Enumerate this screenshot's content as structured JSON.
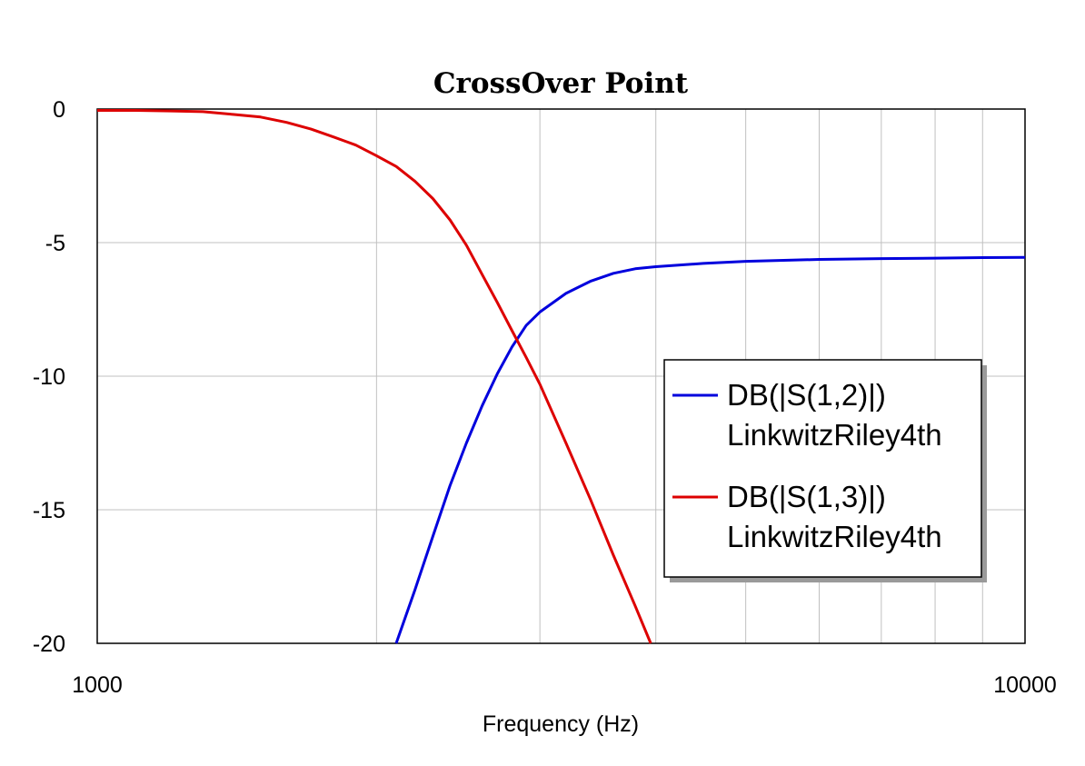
{
  "chart_data": {
    "type": "line",
    "title": "CrossOver Point",
    "xlabel": "Frequency (Hz)",
    "ylabel": "",
    "xscale": "log",
    "xlim": [
      1000,
      10000
    ],
    "ylim": [
      -20,
      0
    ],
    "x_ticks": [
      "1000",
      "10000"
    ],
    "y_ticks": [
      "0",
      "-5",
      "-10",
      "-15",
      "-20"
    ],
    "grid": true,
    "legend_position": "right",
    "series": [
      {
        "name_lines": [
          "DB(|S(1,2)|)",
          "LinkwitzRiley4th"
        ],
        "color": "#0000dd",
        "points": [
          [
            2100,
            -20.0
          ],
          [
            2200,
            -18.0
          ],
          [
            2300,
            -16.0
          ],
          [
            2400,
            -14.1
          ],
          [
            2500,
            -12.5
          ],
          [
            2600,
            -11.1
          ],
          [
            2700,
            -9.9
          ],
          [
            2800,
            -8.9
          ],
          [
            2900,
            -8.1
          ],
          [
            3000,
            -7.6
          ],
          [
            3200,
            -6.9
          ],
          [
            3400,
            -6.45
          ],
          [
            3600,
            -6.15
          ],
          [
            3800,
            -5.98
          ],
          [
            4000,
            -5.9
          ],
          [
            4500,
            -5.78
          ],
          [
            5000,
            -5.7
          ],
          [
            6000,
            -5.63
          ],
          [
            7000,
            -5.6
          ],
          [
            8000,
            -5.58
          ],
          [
            9000,
            -5.56
          ],
          [
            10000,
            -5.55
          ]
        ]
      },
      {
        "name_lines": [
          "DB(|S(1,3)|)",
          "LinkwitzRiley4th"
        ],
        "color": "#dd0000",
        "points": [
          [
            1000,
            -0.05
          ],
          [
            1100,
            -0.05
          ],
          [
            1200,
            -0.07
          ],
          [
            1300,
            -0.1
          ],
          [
            1400,
            -0.2
          ],
          [
            1500,
            -0.3
          ],
          [
            1600,
            -0.5
          ],
          [
            1700,
            -0.75
          ],
          [
            1800,
            -1.05
          ],
          [
            1900,
            -1.35
          ],
          [
            2000,
            -1.75
          ],
          [
            2100,
            -2.15
          ],
          [
            2200,
            -2.7
          ],
          [
            2300,
            -3.35
          ],
          [
            2400,
            -4.15
          ],
          [
            2500,
            -5.1
          ],
          [
            2600,
            -6.2
          ],
          [
            2700,
            -7.25
          ],
          [
            2800,
            -8.3
          ],
          [
            2900,
            -9.3
          ],
          [
            3000,
            -10.3
          ],
          [
            3200,
            -12.5
          ],
          [
            3400,
            -14.6
          ],
          [
            3600,
            -16.7
          ],
          [
            3800,
            -18.6
          ],
          [
            3950,
            -20.0
          ]
        ]
      }
    ]
  }
}
